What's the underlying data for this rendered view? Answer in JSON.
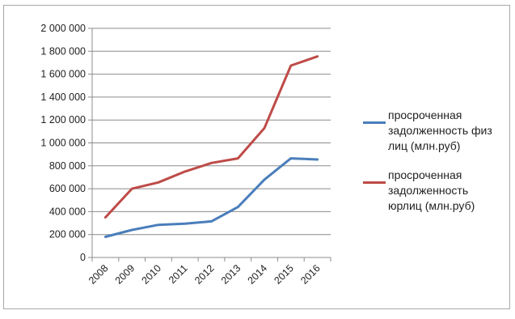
{
  "chart_data": {
    "type": "line",
    "categories": [
      "2008",
      "2009",
      "2010",
      "2011",
      "2012",
      "2013",
      "2014",
      "2015",
      "2016"
    ],
    "ylim": [
      0,
      2000000
    ],
    "yticks": [
      "0",
      "200 000",
      "400 000",
      "600 000",
      "800 000",
      "1 000 000",
      "1 200 000",
      "1 400 000",
      "1 600 000",
      "1 800 000",
      "2 000 000"
    ],
    "grid": true,
    "legend_position": "right",
    "series": [
      {
        "name": "просроченная задолженность физ лиц (млн.руб)",
        "name_lines": [
          "просроченная",
          "задолженность физ",
          "лиц (млн.руб)"
        ],
        "color": "#4a7ebb",
        "values": [
          180000,
          240000,
          285000,
          295000,
          315000,
          440000,
          680000,
          865000,
          855000
        ]
      },
      {
        "name": "просроченная задолженность юрлиц (млн.руб)",
        "name_lines": [
          "просроченная",
          "задолженность",
          "юрлиц (млн.руб)"
        ],
        "color": "#be4b48",
        "values": [
          350000,
          600000,
          655000,
          750000,
          825000,
          865000,
          1130000,
          1675000,
          1755000
        ]
      }
    ]
  }
}
